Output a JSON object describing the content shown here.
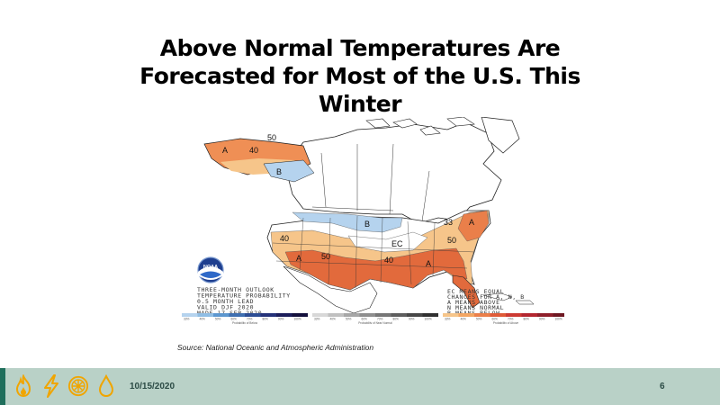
{
  "slide": {
    "title_lines": [
      "Above Normal Temperatures Are",
      "Forecasted for Most of the U.S. This",
      "Winter"
    ],
    "source": "Source: National Oceanic and Atmospheric Administration",
    "date": "10/15/2020",
    "page_number": "6"
  },
  "map": {
    "noaa_logo_text": "NOAA",
    "outlook_lines": [
      "THREE-MONTH OUTLOOK",
      "TEMPERATURE PROBABILITY",
      "0.5 MONTH LEAD",
      "VALID DJF 2020",
      "MADE 17 SEP 2020"
    ],
    "key_lines": [
      "EC MEANS EQUAL",
      "CHANCES FOR A, N, B",
      "A MEANS ABOVE",
      "N MEANS NORMAL",
      "B MEANS BELOW"
    ],
    "labels": {
      "above": "A",
      "below": "B",
      "ec": "EC",
      "contour_40": "40",
      "contour_50": "50",
      "contour_33": "33"
    },
    "colorbar": {
      "below_ticks": [
        "33%",
        "40%",
        "50%",
        "60%",
        "70%",
        "80%",
        "90%",
        "100%"
      ],
      "normal_ticks": [
        "33%",
        "40%",
        "50%",
        "60%",
        "70%",
        "80%",
        "90%",
        "100%"
      ],
      "above_ticks": [
        "33%",
        "40%",
        "50%",
        "60%",
        "70%",
        "80%",
        "90%",
        "100%"
      ],
      "below_caption": "Probability of Below",
      "normal_caption": "Probability of Near Normal",
      "above_caption": "Probability of Above",
      "below_colors": [
        "#b5d3ee",
        "#8fbde4",
        "#5d97cf",
        "#3f6fb0",
        "#2b4c93",
        "#243178",
        "#1b1d5a",
        "#130f3c"
      ],
      "normal_colors": [
        "#d8d8d8",
        "#c0c0c0",
        "#a6a6a6",
        "#8e8e8e",
        "#767676",
        "#5e5e5e",
        "#474747",
        "#303030"
      ],
      "above_colors": [
        "#f6c58a",
        "#f3a562",
        "#ea7f4a",
        "#df5b38",
        "#cc3a32",
        "#b3262f",
        "#8e1f2a",
        "#6e1721"
      ]
    }
  },
  "footer_icons": [
    "fire-icon",
    "lightning-icon",
    "wind-turbine-icon",
    "water-drop-icon"
  ]
}
